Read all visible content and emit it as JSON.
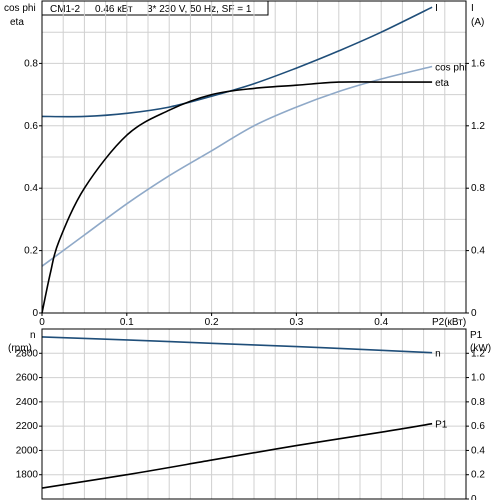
{
  "header": {
    "model": "CM1-2",
    "power": "0.46 кВт",
    "supply": "3* 230 V, 50 Hz, SF = 1"
  },
  "top_axes": {
    "left_label_1": "cos phi",
    "left_label_2": "eta",
    "right_label_1": "I",
    "right_label_2": "(A)",
    "x_label": "P2(кВт)"
  },
  "bottom_axes": {
    "left_label_1": "n",
    "left_label_2": "(rpm)",
    "right_label_1": "P1",
    "right_label_2": "(kW)"
  },
  "colors": {
    "I": "#1f4e79",
    "cos_phi": "#8fa9c8",
    "eta": "#000000",
    "n": "#1f4e79",
    "P1": "#000000",
    "grid": "#d0d0d0"
  },
  "chart_data": [
    {
      "type": "line",
      "x": [
        0,
        0.05,
        0.1,
        0.15,
        0.2,
        0.25,
        0.3,
        0.35,
        0.4,
        0.46
      ],
      "xlim": [
        0,
        0.5
      ],
      "xticks": [
        "0",
        "0.1",
        "0.2",
        "0.3",
        "0.4"
      ],
      "xlabel": "P2(кВт)",
      "ylabel_left": "cos phi / eta",
      "ylim_left": [
        0,
        1.0
      ],
      "yticks_left": [
        "0",
        "0.2",
        "0.4",
        "0.6",
        "0.8"
      ],
      "ylabel_right": "I (A)",
      "ylim_right": [
        0,
        2.0
      ],
      "yticks_right": [
        "0",
        "0.4",
        "0.8",
        "1.2",
        "1.6"
      ],
      "grid": true,
      "series": [
        {
          "name": "I",
          "axis": "right",
          "x": [
            0,
            0.05,
            0.1,
            0.15,
            0.2,
            0.25,
            0.3,
            0.35,
            0.4,
            0.46
          ],
          "values": [
            1.26,
            1.26,
            1.28,
            1.32,
            1.39,
            1.47,
            1.57,
            1.68,
            1.8,
            1.96
          ]
        },
        {
          "name": "cos phi",
          "axis": "left",
          "x": [
            0,
            0.02,
            0.05,
            0.1,
            0.15,
            0.2,
            0.25,
            0.3,
            0.35,
            0.4,
            0.46
          ],
          "values": [
            0.15,
            0.19,
            0.25,
            0.35,
            0.44,
            0.52,
            0.6,
            0.66,
            0.71,
            0.75,
            0.79
          ]
        },
        {
          "name": "eta",
          "axis": "left",
          "x": [
            0,
            0.01,
            0.02,
            0.05,
            0.1,
            0.15,
            0.2,
            0.25,
            0.3,
            0.35,
            0.4,
            0.46
          ],
          "values": [
            0.0,
            0.13,
            0.23,
            0.4,
            0.57,
            0.65,
            0.7,
            0.72,
            0.73,
            0.74,
            0.74,
            0.74
          ]
        }
      ]
    },
    {
      "type": "line",
      "x": [
        0,
        0.1,
        0.2,
        0.3,
        0.4,
        0.46
      ],
      "xlim": [
        0,
        0.5
      ],
      "ylabel_left": "n (rpm)",
      "ylim_left": [
        1600,
        3000
      ],
      "yticks_left": [
        "1800",
        "2000",
        "2200",
        "2400",
        "2600",
        "2800"
      ],
      "ylabel_right": "P1 (kW)",
      "ylim_right": [
        0,
        1.4
      ],
      "yticks_right": [
        "0",
        "0.2",
        "0.4",
        "0.6",
        "0.8",
        "1.0",
        "1.2"
      ],
      "grid": true,
      "series": [
        {
          "name": "n",
          "axis": "left",
          "x": [
            0,
            0.1,
            0.2,
            0.3,
            0.4,
            0.46
          ],
          "values": [
            2935,
            2910,
            2882,
            2855,
            2825,
            2805
          ]
        },
        {
          "name": "P1",
          "axis": "right",
          "x": [
            0,
            0.1,
            0.2,
            0.3,
            0.4,
            0.46
          ],
          "values": [
            0.09,
            0.2,
            0.32,
            0.44,
            0.55,
            0.62
          ]
        }
      ]
    }
  ]
}
